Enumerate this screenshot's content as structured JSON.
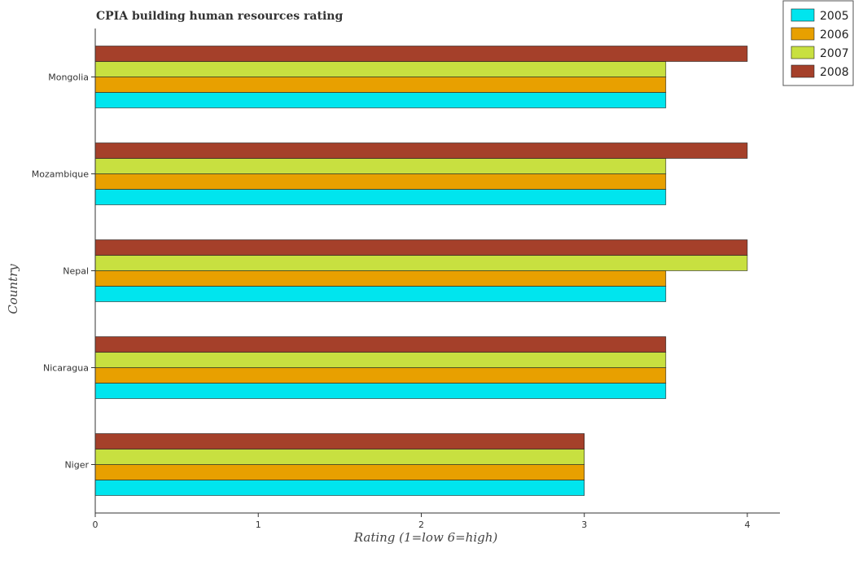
{
  "chart_data": {
    "type": "bar",
    "orientation": "horizontal",
    "title": "CPIA building human resources rating",
    "xlabel": "Rating (1=low 6=high)",
    "ylabel": "Country",
    "xlim": [
      0,
      4.2
    ],
    "xticks": [
      "0",
      "1",
      "2",
      "3",
      "4"
    ],
    "categories": [
      "Mongolia",
      "Mozambique",
      "Nepal",
      "Nicaragua",
      "Niger"
    ],
    "series": [
      {
        "name": "2005",
        "color": "#00e5ee",
        "values": [
          3.5,
          3.5,
          3.5,
          3.5,
          3.0
        ]
      },
      {
        "name": "2006",
        "color": "#e8a000",
        "values": [
          3.5,
          3.5,
          3.5,
          3.5,
          3.0
        ]
      },
      {
        "name": "2007",
        "color": "#c8e040",
        "values": [
          3.5,
          3.5,
          4.0,
          3.5,
          3.0
        ]
      },
      {
        "name": "2008",
        "color": "#a5402a",
        "values": [
          4.0,
          4.0,
          4.0,
          3.5,
          3.0
        ]
      }
    ],
    "grid": false,
    "legend_position": "top-right"
  }
}
